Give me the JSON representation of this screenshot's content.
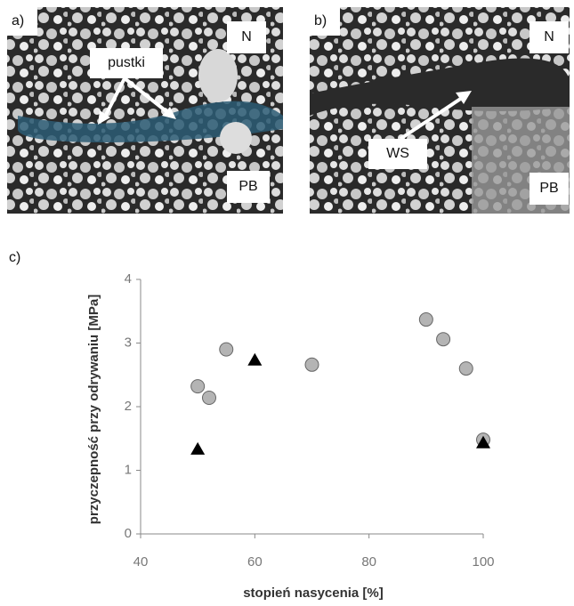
{
  "panels": {
    "a": {
      "label": "a)",
      "top_right": "N",
      "annotation": "pustki",
      "bottom_right": "PB"
    },
    "b": {
      "label": "b)",
      "top_right": "N",
      "annotation": "WS",
      "bottom_right": "PB"
    },
    "c": {
      "label": "c)"
    }
  },
  "chart_data": {
    "type": "scatter",
    "x_label": "stopień nasycenia [%]",
    "y_label": "przyczepność przy odrywaniu [MPa]",
    "xlim": [
      40,
      100
    ],
    "xticks": [
      40,
      60,
      80,
      100
    ],
    "ylim": [
      0,
      4
    ],
    "yticks": [
      0,
      1,
      2,
      3,
      4
    ],
    "series": [
      {
        "color": "#b4b4b4",
        "marker": "circle",
        "x": [
          50,
          52,
          55,
          70,
          90,
          93,
          97,
          100
        ],
        "values": [
          2.32,
          2.14,
          2.9,
          2.66,
          3.37,
          3.06,
          2.6,
          1.48
        ]
      },
      {
        "color": "#000000",
        "marker": "triangle",
        "x": [
          50,
          60,
          100
        ],
        "values": [
          1.33,
          2.73,
          1.43
        ]
      }
    ]
  }
}
